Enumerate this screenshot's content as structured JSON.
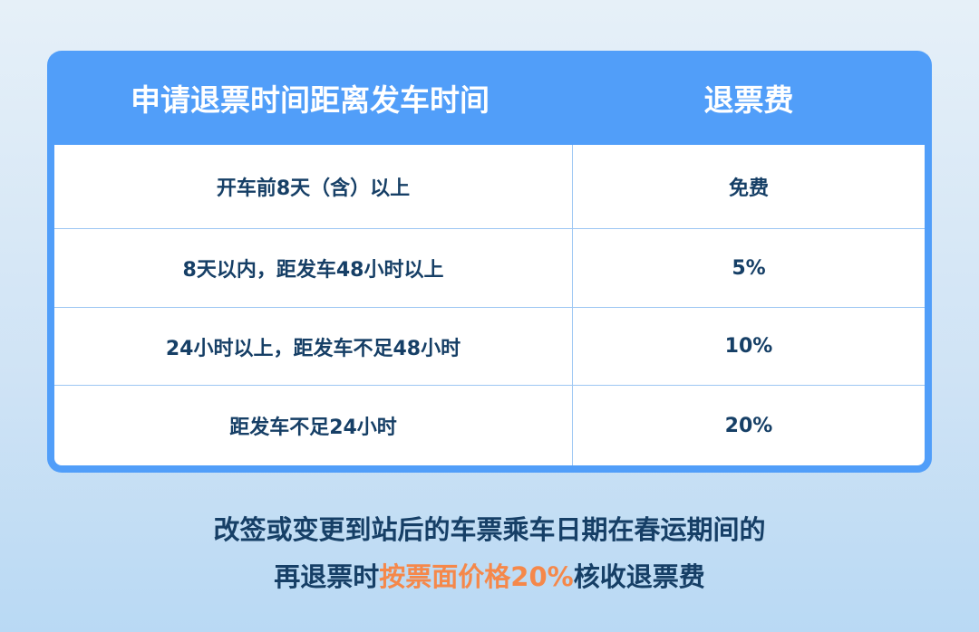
{
  "table": {
    "headers": [
      "申请退票时间距离发车时间",
      "退票费"
    ],
    "rows": [
      {
        "time": "开车前8天（含）以上",
        "fee": "免费"
      },
      {
        "time": "8天以内，距发车48小时以上",
        "fee": "5%"
      },
      {
        "time": "24小时以上，距发车不足48小时",
        "fee": "10%"
      },
      {
        "time": "距发车不足24小时",
        "fee": "20%"
      }
    ]
  },
  "footer": {
    "line1": "改签或变更到站后的车票乘车日期在春运期间的",
    "line2_pre": "再退票时",
    "line2_highlight": "按票面价格20%",
    "line2_post": "核收退票费"
  },
  "colors": {
    "header_bg": "#519ef9",
    "text": "#163f66",
    "highlight": "#f5884a"
  }
}
